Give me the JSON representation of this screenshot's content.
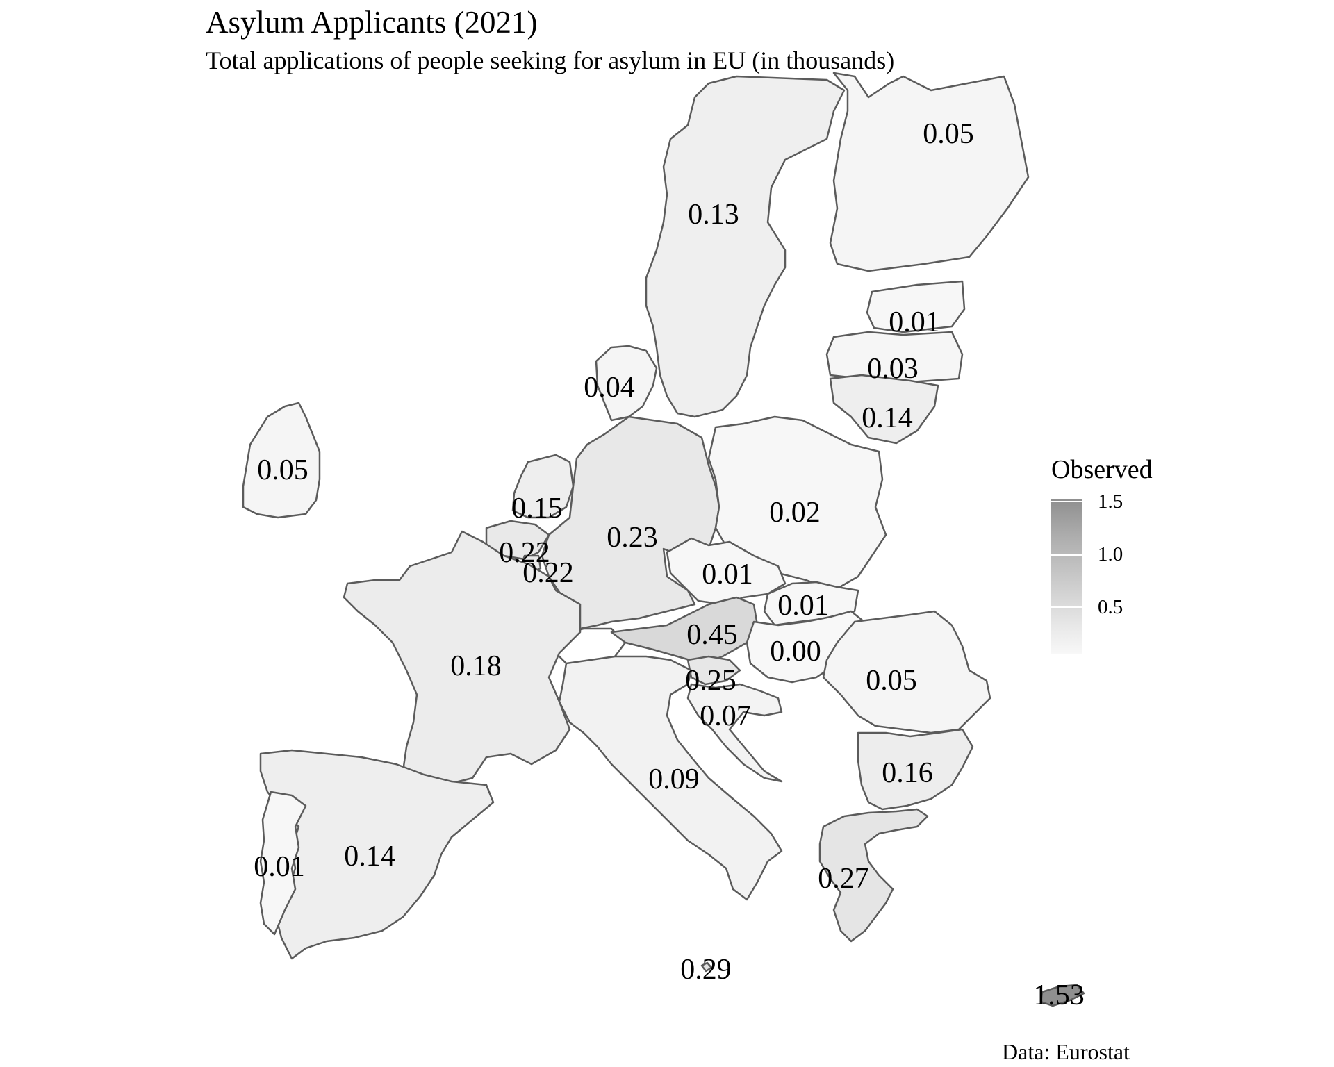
{
  "title": "Asylum Applicants (2021)",
  "subtitle": "Total applications of people seeking for asylum in EU (in thousands)",
  "caption": "Data: Eurostat",
  "legend": {
    "title": "Observed",
    "ticks": [
      "1.5",
      "1.0",
      "0.5"
    ],
    "range": [
      0,
      1.53
    ],
    "colors": {
      "low": "#f8f8f8",
      "high": "#8f8f8f"
    }
  },
  "colors": {
    "border": "#5b5b5b",
    "background": "#ffffff"
  },
  "regions": [
    {
      "label": "0.05",
      "value": 0.05
    },
    {
      "label": "0.13",
      "value": 0.13
    },
    {
      "label": "0.01",
      "value": 0.01
    },
    {
      "label": "0.03",
      "value": 0.03
    },
    {
      "label": "0.14",
      "value": 0.14
    },
    {
      "label": "0.04",
      "value": 0.04
    },
    {
      "label": "0.05",
      "value": 0.05
    },
    {
      "label": "0.15",
      "value": 0.15
    },
    {
      "label": "0.23",
      "value": 0.23
    },
    {
      "label": "0.02",
      "value": 0.02
    },
    {
      "label": "0.22",
      "value": 0.22
    },
    {
      "label": "0.22",
      "value": 0.22
    },
    {
      "label": "0.01",
      "value": 0.01
    },
    {
      "label": "0.01",
      "value": 0.01
    },
    {
      "label": "0.45",
      "value": 0.45
    },
    {
      "label": "0.00",
      "value": 0.0
    },
    {
      "label": "0.18",
      "value": 0.18
    },
    {
      "label": "0.25",
      "value": 0.25
    },
    {
      "label": "0.05",
      "value": 0.05
    },
    {
      "label": "0.07",
      "value": 0.07
    },
    {
      "label": "0.09",
      "value": 0.09
    },
    {
      "label": "0.16",
      "value": 0.16
    },
    {
      "label": "0.14",
      "value": 0.14
    },
    {
      "label": "0.01",
      "value": 0.01
    },
    {
      "label": "0.27",
      "value": 0.27
    },
    {
      "label": "0.29",
      "value": 0.29
    },
    {
      "label": "1.53",
      "value": 1.53
    }
  ]
}
